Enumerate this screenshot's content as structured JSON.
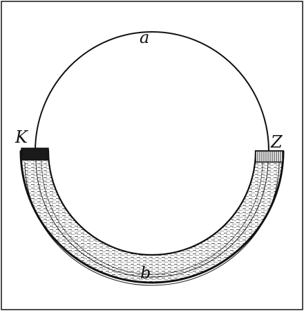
{
  "figure": {
    "labels": {
      "top": "a",
      "bottom": "b",
      "left_junction": "K",
      "right_junction": "Z"
    }
  }
}
